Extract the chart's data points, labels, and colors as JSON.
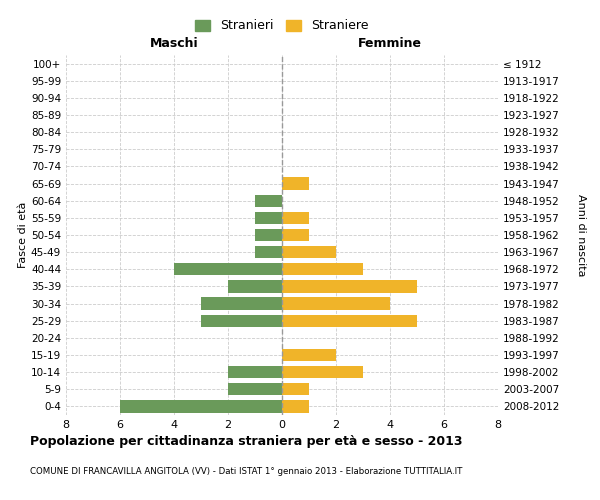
{
  "age_groups": [
    "0-4",
    "5-9",
    "10-14",
    "15-19",
    "20-24",
    "25-29",
    "30-34",
    "35-39",
    "40-44",
    "45-49",
    "50-54",
    "55-59",
    "60-64",
    "65-69",
    "70-74",
    "75-79",
    "80-84",
    "85-89",
    "90-94",
    "95-99",
    "100+"
  ],
  "birth_years": [
    "2008-2012",
    "2003-2007",
    "1998-2002",
    "1993-1997",
    "1988-1992",
    "1983-1987",
    "1978-1982",
    "1973-1977",
    "1968-1972",
    "1963-1967",
    "1958-1962",
    "1953-1957",
    "1948-1952",
    "1943-1947",
    "1938-1942",
    "1933-1937",
    "1928-1932",
    "1923-1927",
    "1918-1922",
    "1913-1917",
    "≤ 1912"
  ],
  "maschi": [
    6,
    2,
    2,
    0,
    0,
    3,
    3,
    2,
    4,
    1,
    1,
    1,
    1,
    0,
    0,
    0,
    0,
    0,
    0,
    0,
    0
  ],
  "femmine": [
    1,
    1,
    3,
    2,
    0,
    5,
    4,
    5,
    3,
    2,
    1,
    1,
    0,
    1,
    0,
    0,
    0,
    0,
    0,
    0,
    0
  ],
  "color_maschi": "#6a9a5a",
  "color_femmine": "#f0b429",
  "grid_color": "#cccccc",
  "title": "Popolazione per cittadinanza straniera per età e sesso - 2013",
  "subtitle": "COMUNE DI FRANCAVILLA ANGITOLA (VV) - Dati ISTAT 1° gennaio 2013 - Elaborazione TUTTITALIA.IT",
  "ylabel_left": "Fasce di età",
  "ylabel_right": "Anni di nascita",
  "label_maschi": "Maschi",
  "label_femmine": "Femmine",
  "legend_maschi": "Stranieri",
  "legend_femmine": "Straniere",
  "xlim": 8
}
